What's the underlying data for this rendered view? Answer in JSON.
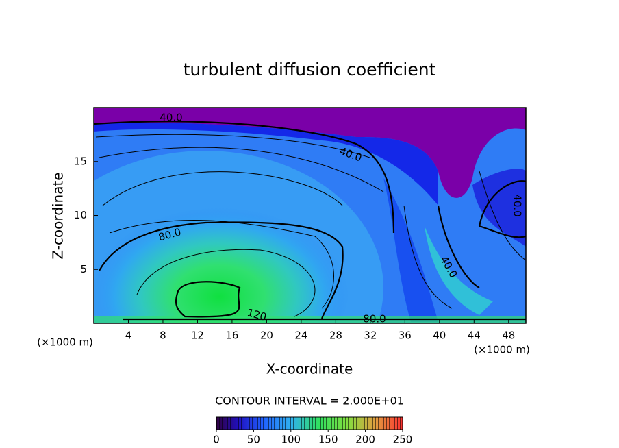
{
  "chart_data": {
    "type": "contour",
    "title": "turbulent diffusion coefficient",
    "x_label": "X-coordinate",
    "y_label": "Z-coordinate",
    "x_unit": "(×1000 m)",
    "y_unit": "(×1000 m)",
    "xlim": [
      0,
      50
    ],
    "xticks": [
      4,
      8,
      12,
      16,
      20,
      24,
      28,
      32,
      36,
      40,
      44,
      48
    ],
    "ylim": [
      0,
      20
    ],
    "yticks": [
      5,
      10,
      15
    ],
    "contour_labels": [
      "40.0",
      "40.0",
      "80.0",
      "120",
      "80.0",
      "40.0",
      "40.0"
    ],
    "contour_interval": "CONTOUR INTERVAL = 2.000E+01",
    "colorbar": {
      "lim": [
        0,
        250
      ],
      "ticks": [
        0,
        50,
        100,
        150,
        200,
        250
      ]
    }
  }
}
